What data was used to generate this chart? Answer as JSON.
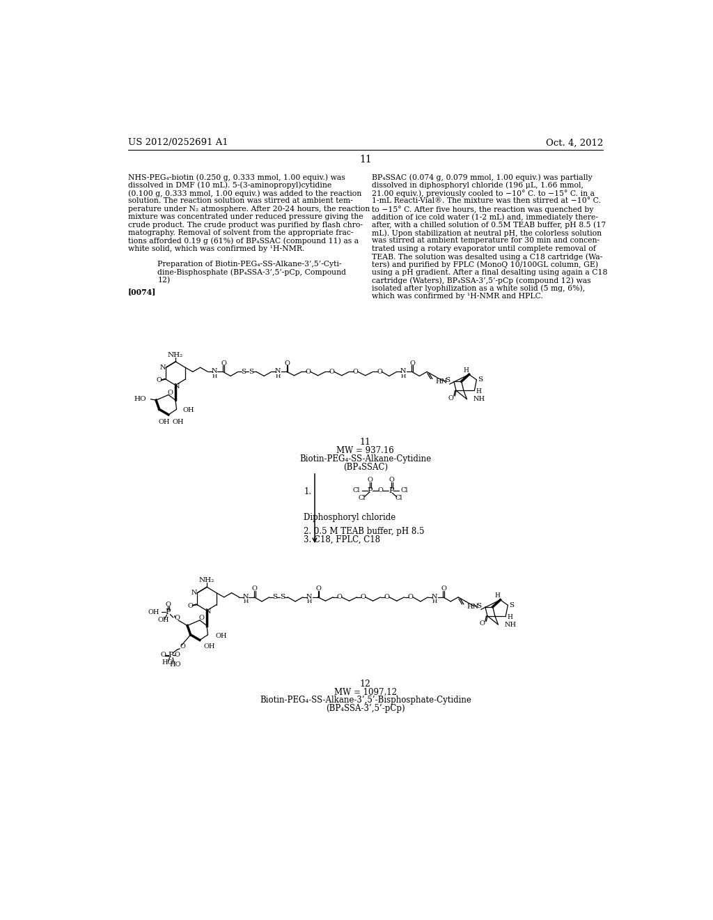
{
  "header_left": "US 2012/0252691 A1",
  "header_right": "Oct. 4, 2012",
  "page_number": "11",
  "background_color": "#ffffff",
  "text_color": "#000000",
  "col1_text": [
    "NHS-PEG₄-biotin (0.250 g, 0.333 mmol, 1.00 equiv.) was",
    "dissolved in DMF (10 mL). 5-(3-aminopropyl)cytidine",
    "(0.100 g, 0.333 mmol, 1.00 equiv.) was added to the reaction",
    "solution. The reaction solution was stirred at ambient tem-",
    "perature under N₂ atmosphere. After 20-24 hours, the reaction",
    "mixture was concentrated under reduced pressure giving the",
    "crude product. The crude product was purified by flash chro-",
    "matography. Removal of solvent from the appropriate frac-",
    "tions afforded 0.19 g (61%) of BP₄SSAC (compound 11) as a",
    "white solid, which was confirmed by ¹H-NMR."
  ],
  "col2_text": [
    "BP₄SSAC (0.074 g, 0.079 mmol, 1.00 equiv.) was partially",
    "dissolved in diphosphoryl chloride (196 μL, 1.66 mmol,",
    "21.00 equiv.), previously cooled to −10° C. to −15° C. in a",
    "1-mL Reacti-Vial®. The mixture was then stirred at −10° C.",
    "to −15° C. After five hours, the reaction was quenched by",
    "addition of ice cold water (1-2 mL) and, immediately there-",
    "after, with a chilled solution of 0.5M TEAB buffer, pH 8.5 (17",
    "mL). Upon stabilization at neutral pH, the colorless solution",
    "was stirred at ambient temperature for 30 min and concen-",
    "trated using a rotary evaporator until complete removal of",
    "TEAB. The solution was desalted using a C18 cartridge (Wa-",
    "ters) and purified by FPLC (MonoQ 10/100GL column, GE)",
    "using a pH gradient. After a final desalting using again a C18",
    "cartridge (Waters), BP₄SSA-3’,5’-pCp (compound 12) was",
    "isolated after lyophilization as a white solid (5 mg, 6%),",
    "which was confirmed by ¹H-NMR and HPLC."
  ],
  "preparation_title": "Preparation of Biotin-PEG₄-SS-Alkane-3’,5’-Cyti-",
  "preparation_title2": "dine-Bisphosphate (BP₄SSA-3’,5’-pCp, Compound",
  "preparation_title3": "12)",
  "paragraph_label": "[0074]",
  "compound11_label": "11",
  "compound11_mw": "MW = 937.16",
  "compound11_name": "Biotin-PEG₄-SS-Alkane-Cytidine",
  "compound11_abbrev": "(BP₄SSAC)",
  "reagent1": "1.",
  "reagent_name": "Diphosphoryl chloride",
  "reagent2": "2. 0.5 M TEAB buffer, pH 8.5",
  "reagent3": "3. C18, FPLC, C18",
  "compound12_label": "12",
  "compound12_mw": "MW = 1097.12",
  "compound12_name": "Biotin-PEG₄-SS-Alkane-3’,5’-Bisphosphate-Cytidine",
  "compound12_abbrev": "(BP₄SSA-3’,5’-pCp)"
}
